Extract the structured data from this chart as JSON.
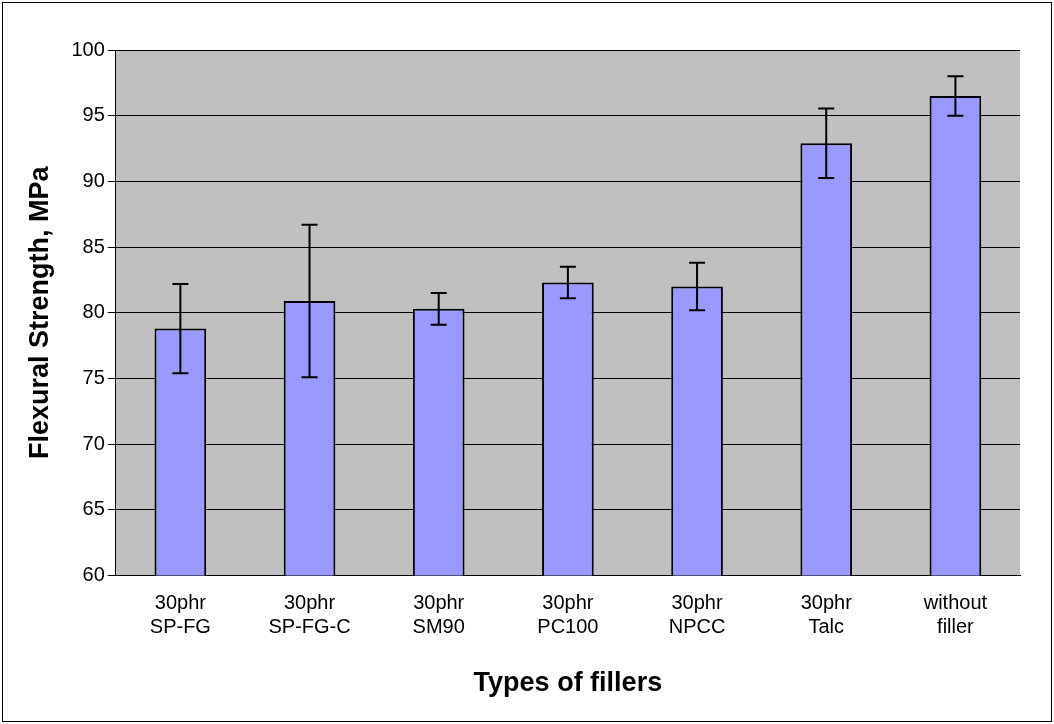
{
  "chart_data": {
    "type": "bar",
    "xlabel": "Types of fillers",
    "ylabel": "Flexural Strength, MPa",
    "categories": [
      "30phr SP-FG",
      "30phr SP-FG-C",
      "30phr SM90",
      "30phr PC100",
      "30phr NPCC",
      "30phr Talc",
      "without filler"
    ],
    "values": [
      78.8,
      80.9,
      80.3,
      82.3,
      82.0,
      92.9,
      96.5
    ],
    "errors": [
      3.4,
      5.8,
      1.2,
      1.2,
      1.8,
      2.65,
      1.5
    ],
    "color": "#9999ff",
    "ylim": [
      60,
      100
    ],
    "yticks": [
      60,
      65,
      70,
      75,
      80,
      85,
      90,
      95,
      100
    ],
    "grid": "y",
    "legend": false
  }
}
